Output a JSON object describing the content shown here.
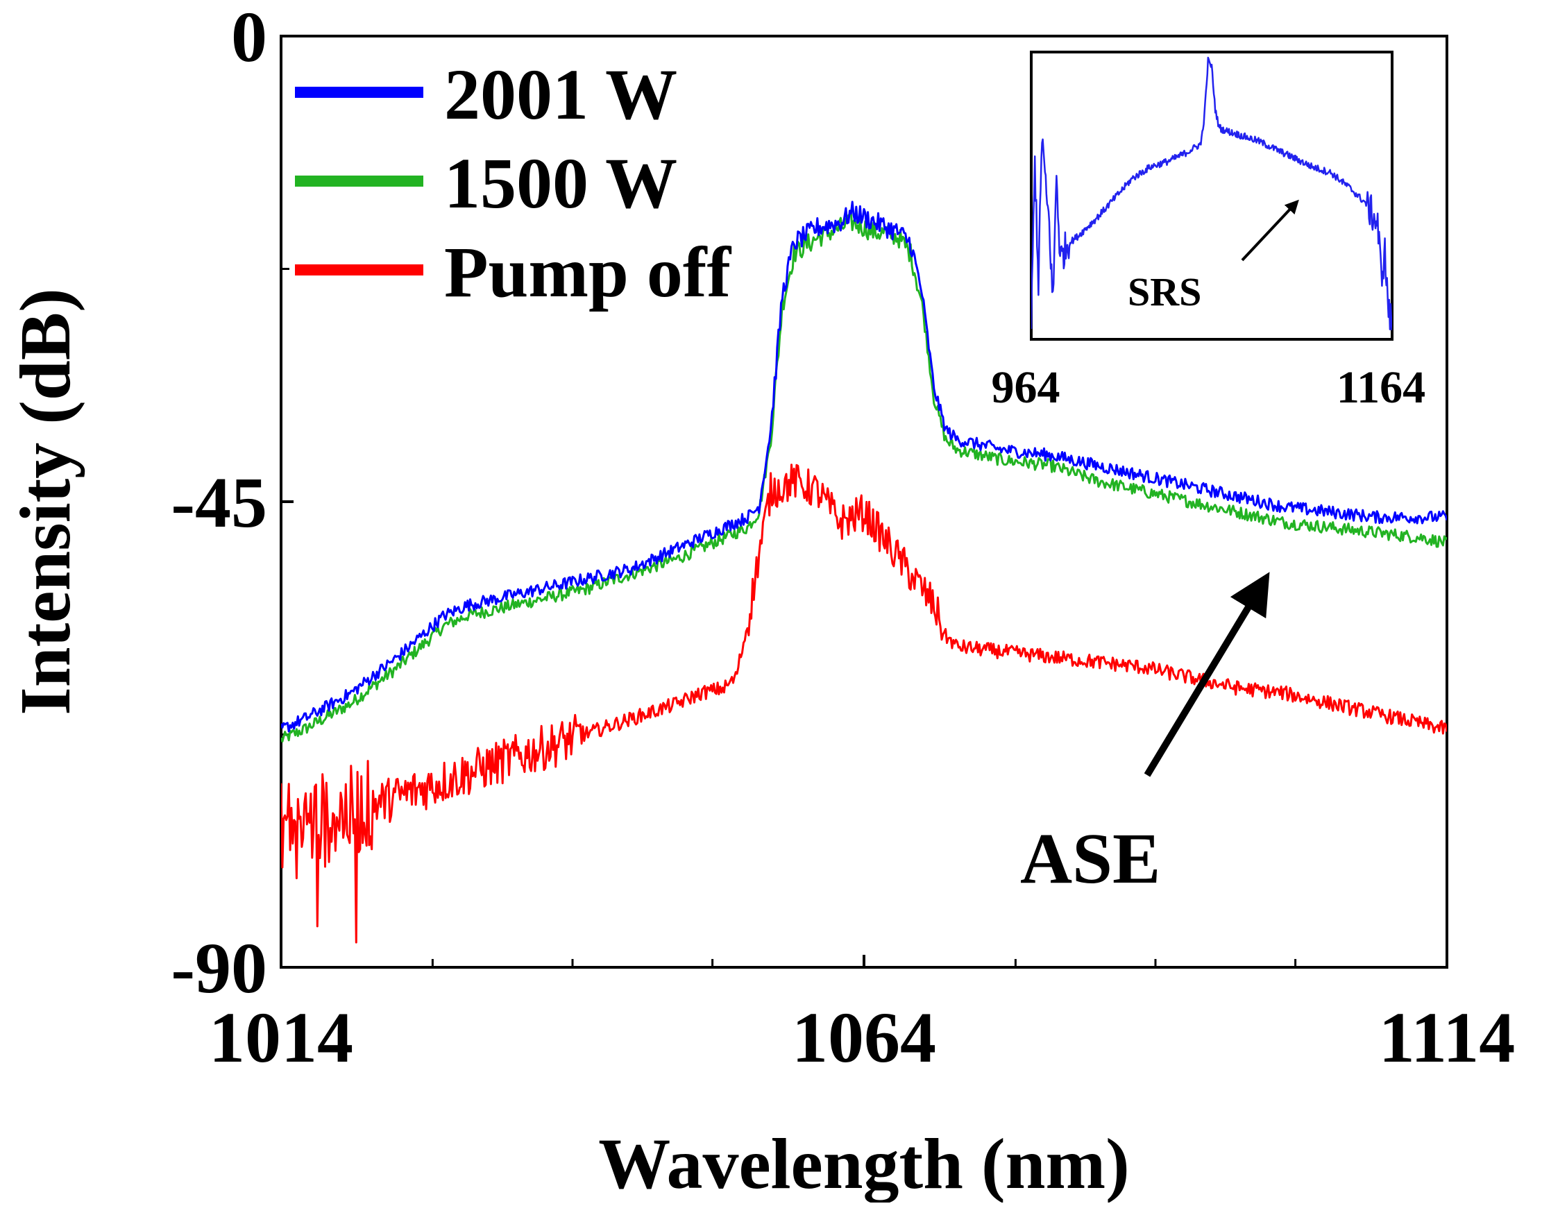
{
  "chart_data": {
    "type": "line",
    "xlabel": "Wavelength (nm)",
    "ylabel": "Intensity (dB)",
    "xlim": [
      1014,
      1114
    ],
    "ylim": [
      -90,
      0
    ],
    "x_ticks": [
      1014,
      1064,
      1114
    ],
    "x_tick_labels": [
      "1014",
      "1064",
      "1114"
    ],
    "y_ticks": [
      0,
      -45,
      -90
    ],
    "y_tick_labels": [
      "0",
      "-45",
      "-90"
    ],
    "grid": false,
    "legend_position": "top-left",
    "series": [
      {
        "name": "2001 W",
        "color": "#0000ff",
        "x": [
          1014,
          1016,
          1020,
          1024,
          1028,
          1030,
          1036,
          1040,
          1044,
          1048,
          1052,
          1054,
          1055,
          1056,
          1057,
          1058,
          1060,
          1062,
          1063,
          1064,
          1065,
          1066,
          1067,
          1068,
          1069,
          1070,
          1071,
          1072,
          1076,
          1080,
          1084,
          1088,
          1092,
          1096,
          1100,
          1104,
          1108,
          1112,
          1114
        ],
        "y": [
          -67,
          -66,
          -63.5,
          -60,
          -56,
          -55,
          -53.5,
          -52.5,
          -51.5,
          -49.5,
          -47.5,
          -46.5,
          -45.5,
          -38,
          -25,
          -20,
          -18.5,
          -18,
          -17,
          -17.5,
          -18,
          -18.5,
          -19,
          -20,
          -25,
          -34,
          -38,
          -39,
          -40,
          -40.5,
          -41.5,
          -42.5,
          -43.5,
          -44.5,
          -45.5,
          -46,
          -46.5,
          -46.5,
          -46.5
        ]
      },
      {
        "name": "1500 W",
        "color": "#22b322",
        "x": [
          1014,
          1016,
          1020,
          1024,
          1028,
          1030,
          1036,
          1040,
          1044,
          1048,
          1052,
          1054,
          1055,
          1056,
          1057,
          1058,
          1060,
          1062,
          1063,
          1064,
          1065,
          1066,
          1067,
          1068,
          1069,
          1070,
          1071,
          1072,
          1076,
          1080,
          1084,
          1088,
          1092,
          1096,
          1100,
          1104,
          1108,
          1112,
          1114
        ],
        "y": [
          -68,
          -67,
          -64.5,
          -61,
          -57,
          -56,
          -54.5,
          -53.5,
          -52,
          -50.5,
          -48.5,
          -47.5,
          -46,
          -39,
          -26,
          -21,
          -19.5,
          -18.5,
          -18,
          -18.5,
          -19,
          -19,
          -19.5,
          -21,
          -26,
          -35,
          -39,
          -40,
          -41,
          -41.5,
          -43,
          -44,
          -45,
          -46,
          -47,
          -47.5,
          -48,
          -48.5,
          -49
        ]
      },
      {
        "name": "Pump off",
        "color": "#ff0000",
        "x": [
          1014,
          1016,
          1018,
          1020,
          1024,
          1028,
          1032,
          1036,
          1040,
          1044,
          1048,
          1050,
          1052,
          1053,
          1054,
          1055,
          1056,
          1058,
          1060,
          1062,
          1064,
          1066,
          1068,
          1070,
          1071,
          1072,
          1076,
          1080,
          1084,
          1088,
          1092,
          1096,
          1100,
          1104,
          1108,
          1112,
          1114
        ],
        "y": [
          -76,
          -76,
          -75.5,
          -75,
          -73.5,
          -72,
          -70.5,
          -69,
          -67.5,
          -66,
          -64.5,
          -63.5,
          -63,
          -62,
          -57,
          -50,
          -44,
          -43,
          -44,
          -47,
          -46,
          -49,
          -52,
          -55,
          -58,
          -59,
          -59.5,
          -60,
          -60.5,
          -61,
          -62,
          -63,
          -63.5,
          -64.5,
          -65.5,
          -66.5,
          -67
        ]
      }
    ],
    "annotations": [
      {
        "text": "ASE"
      }
    ],
    "inset": {
      "type": "line",
      "x_tick_labels": [
        "964",
        "1164"
      ],
      "xlim": [
        964,
        1164
      ],
      "annotation": "SRS",
      "series": [
        {
          "name": "2001 W",
          "color": "#2222ee",
          "x": [
            964,
            966,
            968,
            970,
            972,
            974,
            976,
            978,
            980,
            984,
            990,
            1000,
            1010,
            1020,
            1030,
            1040,
            1050,
            1058,
            1060,
            1062,
            1064,
            1066,
            1068,
            1070,
            1080,
            1090,
            1100,
            1110,
            1120,
            1130,
            1140,
            1150,
            1156,
            1158,
            1160,
            1162,
            1164
          ],
          "y": [
            0.05,
            0.62,
            0.2,
            0.72,
            0.52,
            0.4,
            0.12,
            0.58,
            0.28,
            0.33,
            0.36,
            0.42,
            0.49,
            0.56,
            0.6,
            0.62,
            0.65,
            0.68,
            0.78,
            0.97,
            0.95,
            0.8,
            0.74,
            0.73,
            0.71,
            0.69,
            0.66,
            0.63,
            0.6,
            0.58,
            0.53,
            0.47,
            0.4,
            0.22,
            0.3,
            0.1,
            0.05
          ]
        }
      ]
    }
  }
}
